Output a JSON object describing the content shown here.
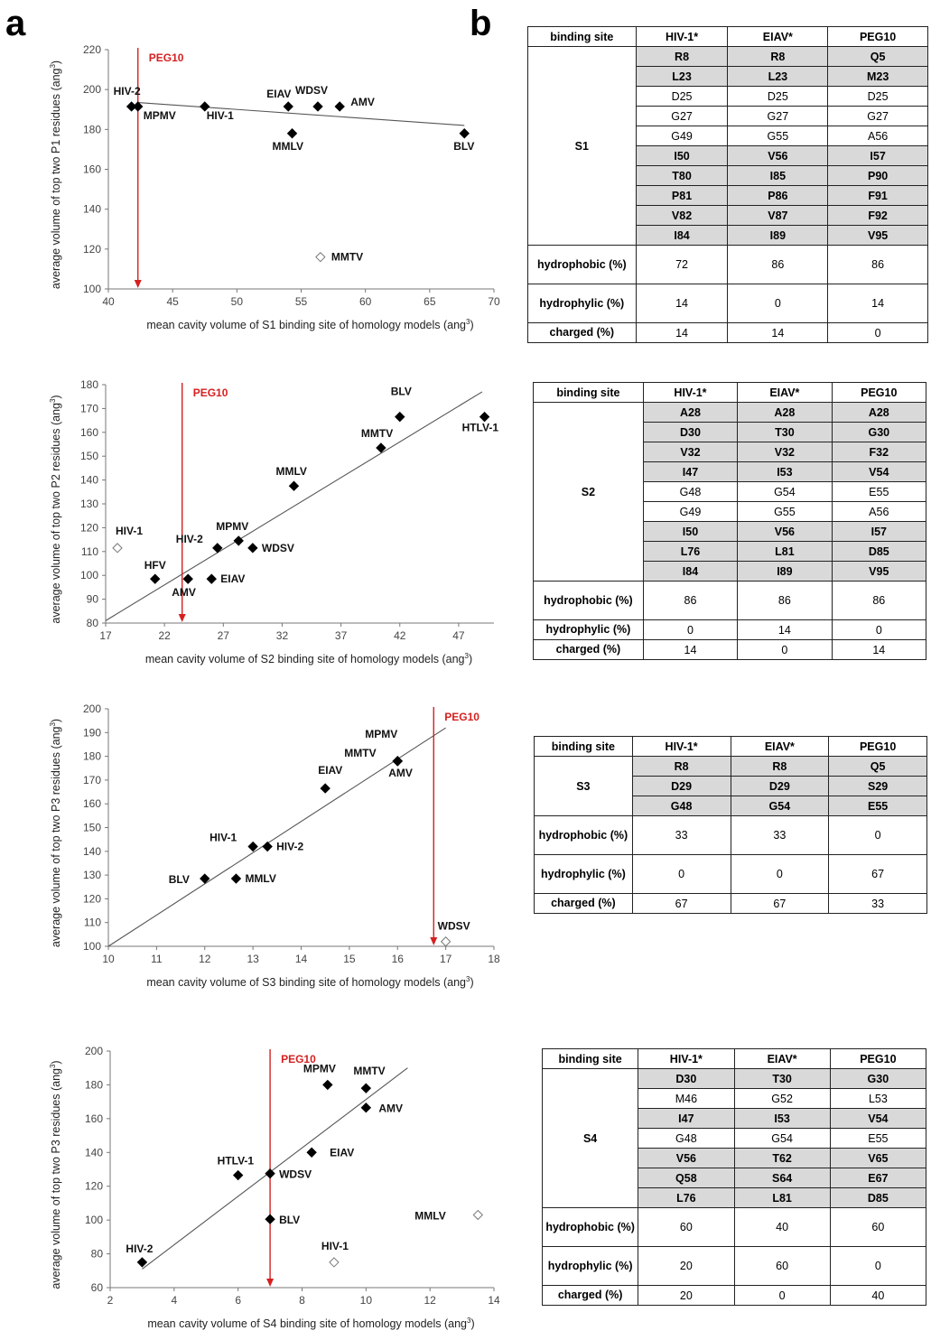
{
  "panel_letters": {
    "a": "a",
    "b": "b"
  },
  "chart_data": [
    {
      "type": "scatter",
      "xlabel": "mean cavity volume of S1 binding site of homology models (ang",
      "ylabel": "average volume of top two P1 residues (ang",
      "unit_sup": "3",
      "xlim": [
        40,
        70
      ],
      "ylim": [
        100,
        220
      ],
      "xticks": [
        40,
        45,
        50,
        55,
        60,
        65,
        70
      ],
      "yticks": [
        100,
        120,
        140,
        160,
        180,
        200,
        220
      ],
      "points": [
        {
          "label": "HIV-2",
          "x": 41.8,
          "y": 191.5,
          "filled": true
        },
        {
          "label": "MPMV",
          "x": 42.3,
          "y": 191.5,
          "filled": true
        },
        {
          "label": "HIV-1",
          "x": 47.5,
          "y": 191.5,
          "filled": true
        },
        {
          "label": "EIAV",
          "x": 54.0,
          "y": 191.5,
          "filled": true
        },
        {
          "label": "WDSV",
          "x": 56.3,
          "y": 191.5,
          "filled": true
        },
        {
          "label": "AMV",
          "x": 58.0,
          "y": 191.5,
          "filled": true
        },
        {
          "label": "MMLV",
          "x": 54.3,
          "y": 178.0,
          "filled": true
        },
        {
          "label": "BLV",
          "x": 67.7,
          "y": 178.0,
          "filled": true
        },
        {
          "label": "MMTV",
          "x": 56.5,
          "y": 116.0,
          "filled": false
        }
      ],
      "trend": {
        "x1": 42.3,
        "y1": 193.5,
        "x2": 67.7,
        "y2": 182.0
      },
      "marker": {
        "label": "PEG10",
        "x": 42.3
      }
    },
    {
      "type": "scatter",
      "xlabel": "mean cavity volume of S2 binding site of homology models (ang",
      "ylabel": "average volume of top two P2 residues (ang",
      "unit_sup": "3",
      "xlim": [
        17,
        50
      ],
      "ylim": [
        80,
        180
      ],
      "xticks": [
        17,
        22,
        27,
        32,
        37,
        42,
        47
      ],
      "yticks": [
        80,
        90,
        100,
        110,
        120,
        130,
        140,
        150,
        160,
        170,
        180
      ],
      "points": [
        {
          "label": "HIV-1",
          "x": 18.0,
          "y": 111.5,
          "filled": false
        },
        {
          "label": "HFV",
          "x": 21.2,
          "y": 98.5,
          "filled": true
        },
        {
          "label": "AMV",
          "x": 24.0,
          "y": 98.5,
          "filled": true
        },
        {
          "label": "EIAV",
          "x": 26.0,
          "y": 98.5,
          "filled": true
        },
        {
          "label": "HIV-2",
          "x": 26.5,
          "y": 111.5,
          "filled": true
        },
        {
          "label": "MPMV",
          "x": 28.3,
          "y": 114.5,
          "filled": true
        },
        {
          "label": "WDSV",
          "x": 29.5,
          "y": 111.5,
          "filled": true
        },
        {
          "label": "MMLV",
          "x": 33.0,
          "y": 137.5,
          "filled": true
        },
        {
          "label": "MMTV",
          "x": 40.4,
          "y": 153.5,
          "filled": true
        },
        {
          "label": "BLV",
          "x": 42.0,
          "y": 166.5,
          "filled": true
        },
        {
          "label": "HTLV-1",
          "x": 49.2,
          "y": 166.5,
          "filled": true
        }
      ],
      "trend": {
        "x1": 17.0,
        "y1": 81.0,
        "x2": 49.0,
        "y2": 177.0
      },
      "marker": {
        "label": "PEG10",
        "x": 23.5
      }
    },
    {
      "type": "scatter",
      "xlabel": "mean cavity volume of S3 binding site of homology models (ang",
      "ylabel": "average volume of top two P3 residues (ang",
      "unit_sup": "3",
      "xlim": [
        10,
        18
      ],
      "ylim": [
        100,
        200
      ],
      "xticks": [
        10,
        11,
        12,
        13,
        14,
        15,
        16,
        17,
        18
      ],
      "yticks": [
        100,
        110,
        120,
        130,
        140,
        150,
        160,
        170,
        180,
        190,
        200
      ],
      "points": [
        {
          "label": "BLV",
          "x": 12.0,
          "y": 128.5,
          "filled": true
        },
        {
          "label": "MMLV",
          "x": 12.65,
          "y": 128.5,
          "filled": true
        },
        {
          "label": "HIV-1",
          "x": 13.0,
          "y": 142.0,
          "filled": true
        },
        {
          "label": "HIV-2",
          "x": 13.3,
          "y": 142.0,
          "filled": true
        },
        {
          "label": "EIAV",
          "x": 14.5,
          "y": 166.5,
          "filled": true
        },
        {
          "label": "MPMV",
          "x": 16.0,
          "y": 178.0,
          "filled": true
        },
        {
          "label": "MMTV",
          "x": 16.0,
          "y": 178.0,
          "filled": true
        },
        {
          "label": "AMV",
          "x": 16.0,
          "y": 178.0,
          "filled": true
        },
        {
          "label": "WDSV",
          "x": 17.0,
          "y": 102.0,
          "filled": false
        }
      ],
      "trend": {
        "x1": 10.0,
        "y1": 100.0,
        "x2": 17.0,
        "y2": 192.0
      },
      "marker": {
        "label": "PEG10",
        "x": 16.75
      }
    },
    {
      "type": "scatter",
      "xlabel": "mean cavity volume of S4 binding site of homology models (ang",
      "ylabel": "average volume of top two P3 residues (ang",
      "unit_sup": "3",
      "xlim": [
        2,
        14
      ],
      "ylim": [
        60,
        200
      ],
      "xticks": [
        2,
        4,
        6,
        8,
        10,
        12,
        14
      ],
      "yticks": [
        60,
        80,
        100,
        120,
        140,
        160,
        180,
        200
      ],
      "points": [
        {
          "label": "HIV-2",
          "x": 3.0,
          "y": 75.0,
          "filled": true
        },
        {
          "label": "HTLV-1",
          "x": 6.0,
          "y": 126.5,
          "filled": true
        },
        {
          "label": "WDSV",
          "x": 7.0,
          "y": 127.5,
          "filled": true
        },
        {
          "label": "BLV",
          "x": 7.0,
          "y": 100.5,
          "filled": true
        },
        {
          "label": "EIAV",
          "x": 8.3,
          "y": 140.0,
          "filled": true
        },
        {
          "label": "MPMV",
          "x": 8.8,
          "y": 180.0,
          "filled": true
        },
        {
          "label": "MMTV",
          "x": 10.0,
          "y": 178.0,
          "filled": true
        },
        {
          "label": "AMV",
          "x": 10.0,
          "y": 166.5,
          "filled": true
        },
        {
          "label": "HIV-1",
          "x": 9.0,
          "y": 75.0,
          "filled": false
        },
        {
          "label": "MMLV",
          "x": 13.5,
          "y": 103.0,
          "filled": false
        }
      ],
      "trend": {
        "x1": 3.0,
        "y1": 71.0,
        "x2": 11.3,
        "y2": 190.0
      },
      "marker": {
        "label": "PEG10",
        "x": 7.0
      }
    }
  ],
  "tables": [
    {
      "header": [
        "binding site",
        "HIV-1*",
        "EIAV*",
        "PEG10"
      ],
      "site": "S1",
      "rows": [
        {
          "shaded": true,
          "cells": [
            "R8",
            "R8",
            "Q5"
          ]
        },
        {
          "shaded": true,
          "cells": [
            "L23",
            "L23",
            "M23"
          ]
        },
        {
          "shaded": false,
          "cells": [
            "D25",
            "D25",
            "D25"
          ]
        },
        {
          "shaded": false,
          "cells": [
            "G27",
            "G27",
            "G27"
          ]
        },
        {
          "shaded": false,
          "cells": [
            "G49",
            "G55",
            "A56"
          ]
        },
        {
          "shaded": true,
          "cells": [
            "I50",
            "V56",
            "I57"
          ]
        },
        {
          "shaded": true,
          "cells": [
            "T80",
            "I85",
            "P90"
          ]
        },
        {
          "shaded": true,
          "cells": [
            "P81",
            "P86",
            "F91"
          ]
        },
        {
          "shaded": true,
          "cells": [
            "V82",
            "V87",
            "F92"
          ]
        },
        {
          "shaded": true,
          "cells": [
            "I84",
            "I89",
            "V95"
          ]
        }
      ],
      "stats": [
        {
          "label": "hydrophobic (%)",
          "values": [
            "72",
            "86",
            "86"
          ],
          "tall": true
        },
        {
          "label": "hydrophylic (%)",
          "values": [
            "14",
            "0",
            "14"
          ],
          "tall": true
        },
        {
          "label": "charged (%)",
          "values": [
            "14",
            "14",
            "0"
          ],
          "tall": false
        }
      ]
    },
    {
      "header": [
        "binding site",
        "HIV-1*",
        "EIAV*",
        "PEG10"
      ],
      "site": "S2",
      "rows": [
        {
          "shaded": true,
          "cells": [
            "A28",
            "A28",
            "A28"
          ]
        },
        {
          "shaded": true,
          "cells": [
            "D30",
            "T30",
            "G30"
          ]
        },
        {
          "shaded": true,
          "cells": [
            "V32",
            "V32",
            "F32"
          ]
        },
        {
          "shaded": true,
          "cells": [
            "I47",
            "I53",
            "V54"
          ]
        },
        {
          "shaded": false,
          "cells": [
            "G48",
            "G54",
            "E55"
          ]
        },
        {
          "shaded": false,
          "cells": [
            "G49",
            "G55",
            "A56"
          ]
        },
        {
          "shaded": true,
          "cells": [
            "I50",
            "V56",
            "I57"
          ]
        },
        {
          "shaded": true,
          "cells": [
            "L76",
            "L81",
            "D85"
          ]
        },
        {
          "shaded": true,
          "cells": [
            "I84",
            "I89",
            "V95"
          ]
        }
      ],
      "stats": [
        {
          "label": "hydrophobic (%)",
          "values": [
            "86",
            "86",
            "86"
          ],
          "tall": true
        },
        {
          "label": "hydrophylic (%)",
          "values": [
            "0",
            "14",
            "0"
          ],
          "tall": false
        },
        {
          "label": "charged (%)",
          "values": [
            "14",
            "0",
            "14"
          ],
          "tall": false
        }
      ]
    },
    {
      "header": [
        "binding site",
        "HIV-1*",
        "EIAV*",
        "PEG10"
      ],
      "site": "S3",
      "rows": [
        {
          "shaded": true,
          "cells": [
            "R8",
            "R8",
            "Q5"
          ]
        },
        {
          "shaded": true,
          "cells": [
            "D29",
            "D29",
            "S29"
          ]
        },
        {
          "shaded": true,
          "cells": [
            "G48",
            "G54",
            "E55"
          ]
        }
      ],
      "stats": [
        {
          "label": "hydrophobic (%)",
          "values": [
            "33",
            "33",
            "0"
          ],
          "tall": true
        },
        {
          "label": "hydrophylic (%)",
          "values": [
            "0",
            "0",
            "67"
          ],
          "tall": true
        },
        {
          "label": "charged (%)",
          "values": [
            "67",
            "67",
            "33"
          ],
          "tall": false
        }
      ]
    },
    {
      "header": [
        "binding site",
        "HIV-1*",
        "EIAV*",
        "PEG10"
      ],
      "site": "S4",
      "rows": [
        {
          "shaded": true,
          "cells": [
            "D30",
            "T30",
            "G30"
          ]
        },
        {
          "shaded": false,
          "cells": [
            "M46",
            "G52",
            "L53"
          ]
        },
        {
          "shaded": true,
          "cells": [
            "I47",
            "I53",
            "V54"
          ]
        },
        {
          "shaded": false,
          "cells": [
            "G48",
            "G54",
            "E55"
          ]
        },
        {
          "shaded": true,
          "cells": [
            "V56",
            "T62",
            "V65"
          ]
        },
        {
          "shaded": true,
          "cells": [
            "Q58",
            "S64",
            "E67"
          ]
        },
        {
          "shaded": true,
          "cells": [
            "L76",
            "L81",
            "D85"
          ]
        }
      ],
      "stats": [
        {
          "label": "hydrophobic (%)",
          "values": [
            "60",
            "40",
            "60"
          ],
          "tall": true
        },
        {
          "label": "hydrophylic (%)",
          "values": [
            "20",
            "60",
            "0"
          ],
          "tall": true
        },
        {
          "label": "charged (%)",
          "values": [
            "20",
            "0",
            "40"
          ],
          "tall": false
        }
      ]
    }
  ]
}
